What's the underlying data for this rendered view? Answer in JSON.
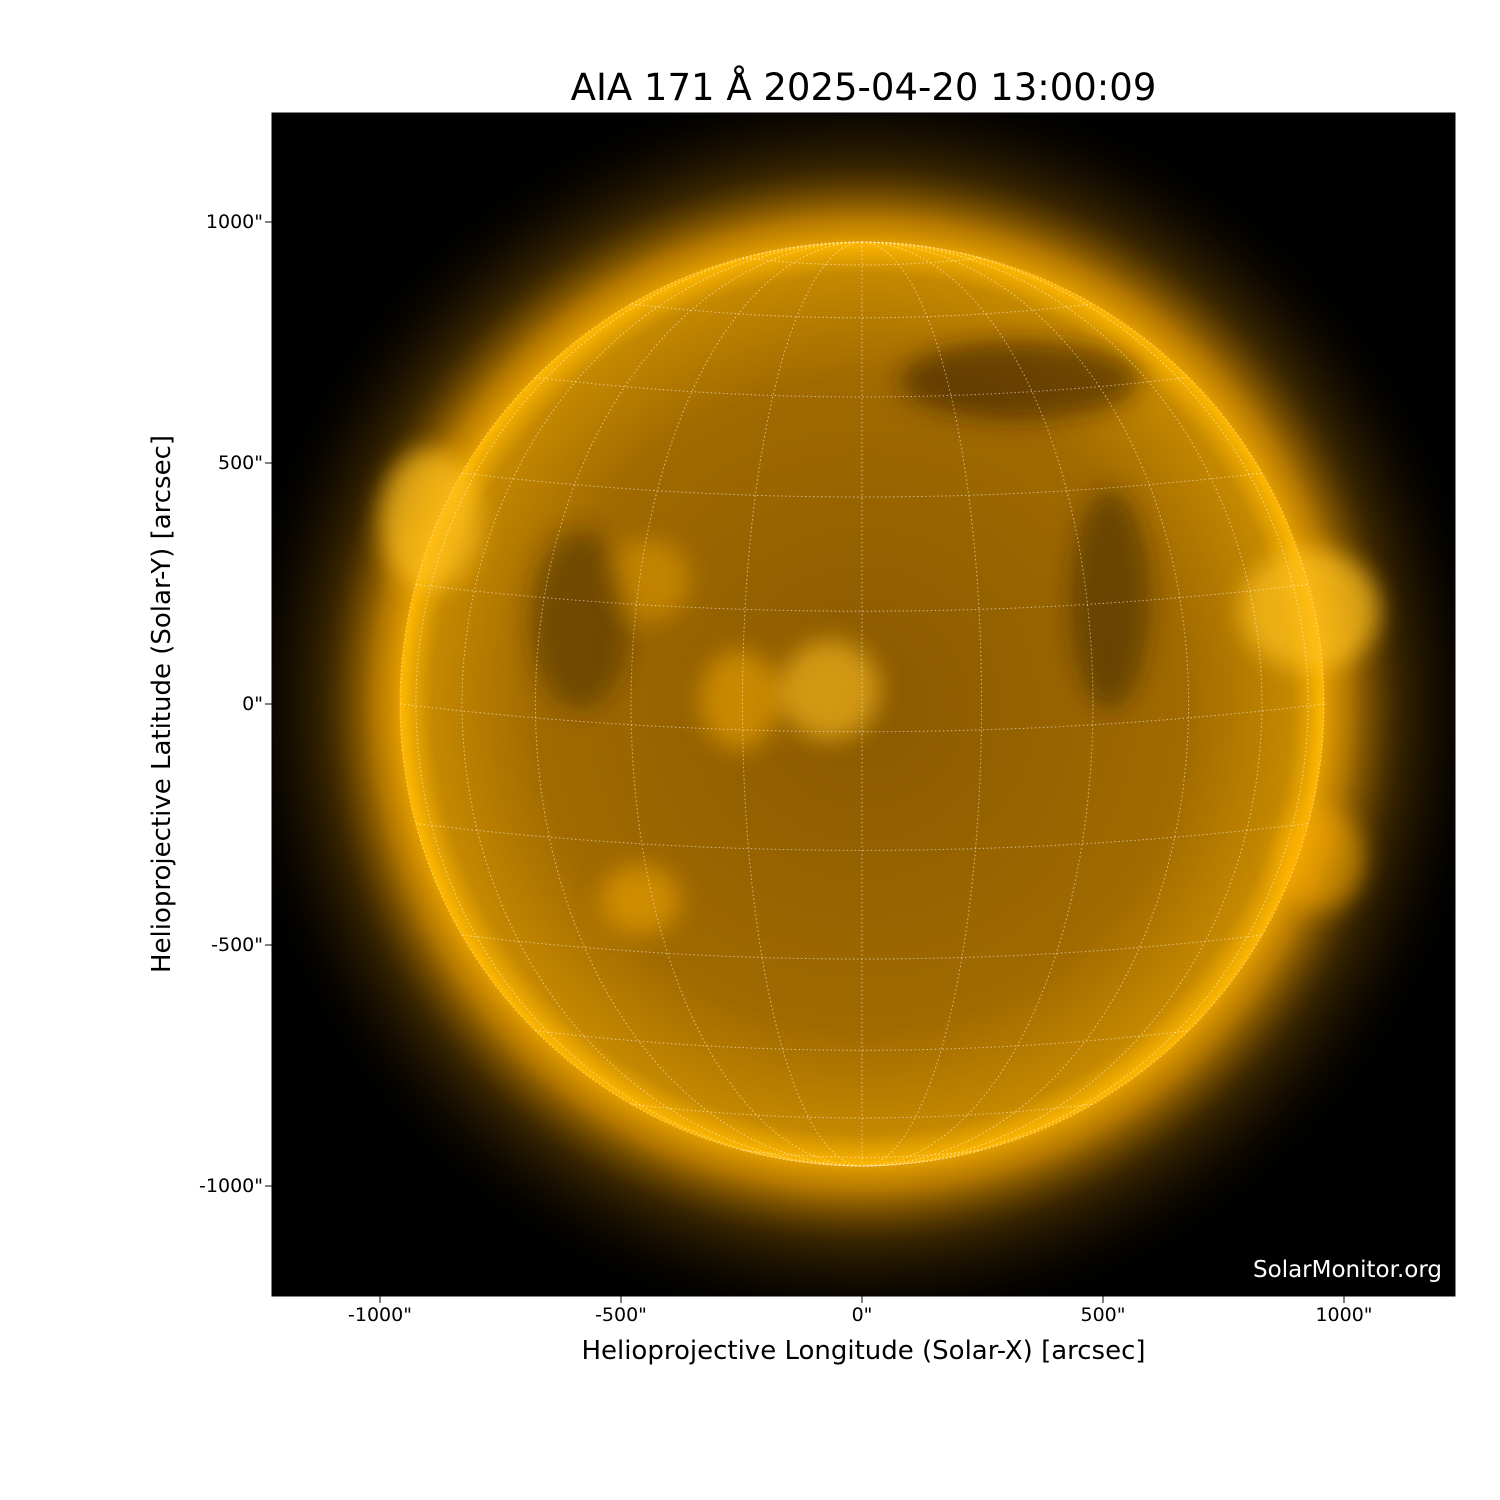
{
  "title": "AIA 171 Å 2025-04-20 13:00:09",
  "xlabel": "Helioprojective Longitude (Solar-X) [arcsec]",
  "ylabel": "Helioprojective Latitude (Solar-Y) [arcsec]",
  "x_ticks": [
    "-1000\"",
    "-500\"",
    "0\"",
    "500\"",
    "1000\""
  ],
  "y_ticks": [
    "1000\"",
    "500\"",
    "0\"",
    "-500\"",
    "-1000\""
  ],
  "watermark": "SolarMonitor.org",
  "colors": {
    "background": "#000000",
    "disk": "#c88a00",
    "corona": "#ffb000",
    "grid": "#ffffff"
  },
  "image": {
    "instrument": "AIA",
    "wavelength": "171 Å",
    "grid": "heliographic, dotted"
  }
}
